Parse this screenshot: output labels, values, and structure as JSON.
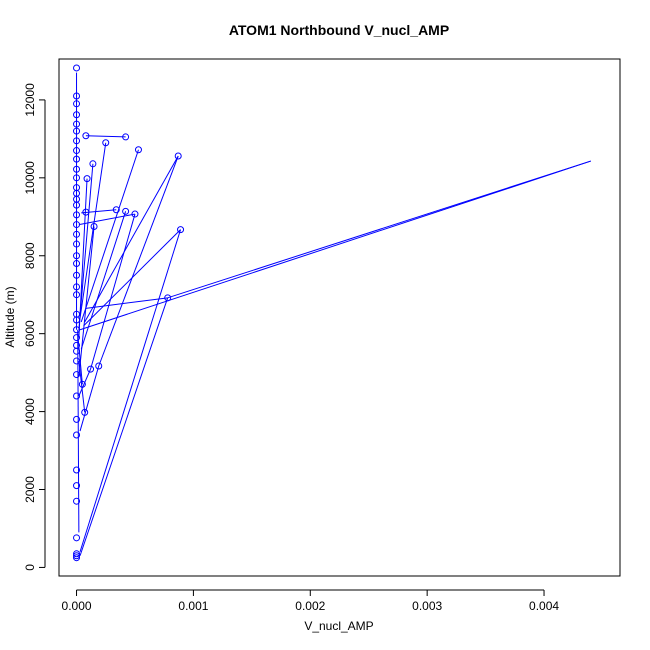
{
  "chart_data": {
    "type": "line",
    "title": "ATOM1 Northbound V_nucl_AMP",
    "xlabel": "V_nucl_AMP",
    "ylabel": "Altitude (m)",
    "xlim": [
      -0.00015,
      0.00465
    ],
    "ylim": [
      -220,
      13050
    ],
    "xticks": [
      0,
      0.001,
      0.002,
      0.003,
      0.004
    ],
    "xtick_labels": [
      "0.000",
      "0.001",
      "0.002",
      "0.003",
      "0.004"
    ],
    "yticks": [
      0,
      2000,
      4000,
      6000,
      8000,
      10000,
      12000
    ],
    "ytick_labels": [
      "0",
      "2000",
      "4000",
      "6000",
      "8000",
      "10000",
      "12000"
    ],
    "grid": false,
    "legend": "none",
    "series_color": "#0000ff",
    "series": [
      {
        "points": [
          [
            0.0,
            12820
          ],
          [
            0.0,
            12100
          ],
          [
            0.0,
            11900
          ],
          [
            0.0,
            11620
          ],
          [
            0.0,
            11380
          ],
          [
            0.0,
            11200
          ],
          [
            8e-05,
            11080
          ],
          [
            0.00042,
            11050
          ],
          [
            0.0,
            10950
          ],
          [
            0.00025,
            10900
          ],
          [
            0.0,
            10700
          ],
          [
            0.00053,
            10720
          ],
          [
            0.0,
            10480
          ],
          [
            0.00087,
            10560
          ],
          [
            0.00014,
            10360
          ],
          [
            0.0,
            10220
          ],
          [
            0.0,
            10000
          ],
          [
            9e-05,
            9980
          ],
          [
            0.0,
            9750
          ],
          [
            0.0,
            9600
          ],
          [
            0.0,
            9450
          ],
          [
            0.0,
            9300
          ],
          [
            0.00034,
            9180
          ],
          [
            8e-05,
            9120
          ],
          [
            0.0,
            9050
          ],
          [
            0.00042,
            9140
          ],
          [
            0.0005,
            9070
          ],
          [
            0.0,
            8800
          ],
          [
            0.00015,
            8750
          ],
          [
            0.00089,
            8670
          ],
          [
            0.0,
            8550
          ],
          [
            0.0,
            8300
          ],
          [
            0.0,
            8000
          ],
          [
            0.0,
            7800
          ],
          [
            0.0,
            7500
          ],
          [
            0.0,
            7200
          ],
          [
            0.0,
            7000
          ],
          [
            0.00078,
            6920
          ],
          [
            0.0,
            6500
          ],
          [
            0.0,
            6350
          ],
          [
            0.0,
            6100
          ],
          [
            0.0,
            5900
          ],
          [
            0.0,
            5700
          ],
          [
            0.0,
            5550
          ],
          [
            0.0,
            5300
          ],
          [
            0.00019,
            5170
          ],
          [
            0.00012,
            5090
          ],
          [
            0.0,
            4950
          ],
          [
            5e-05,
            4700
          ],
          [
            0.0,
            4400
          ],
          [
            7e-05,
            3980
          ],
          [
            0.0,
            3800
          ],
          [
            0.0,
            3400
          ],
          [
            0.0,
            2500
          ],
          [
            0.0,
            2100
          ],
          [
            0.0,
            1700
          ],
          [
            0.0,
            760
          ],
          [
            0.0,
            350
          ],
          [
            0.0,
            300
          ],
          [
            0.0,
            250
          ]
        ],
        "segments": [
          [
            [
              0.0,
              12700
            ],
            [
              0.0,
              6100
            ]
          ],
          [
            [
              8e-05,
              11080
            ],
            [
              0.00042,
              11050
            ]
          ],
          [
            [
              0.00025,
              10900
            ],
            [
              3e-05,
              6400
            ]
          ],
          [
            [
              0.00053,
              10720
            ],
            [
              4e-05,
              6300
            ]
          ],
          [
            [
              0.00087,
              10560
            ],
            [
              7e-05,
              6300
            ]
          ],
          [
            [
              0.00087,
              10560
            ],
            [
              0.00019,
              5170
            ]
          ],
          [
            [
              0.00014,
              10360
            ],
            [
              2e-05,
              6100
            ]
          ],
          [
            [
              0.0044,
              10430
            ],
            [
              3e-05,
              6100
            ]
          ],
          [
            [
              0.0044,
              10430
            ],
            [
              0.00078,
              6920
            ]
          ],
          [
            [
              0.00078,
              6920
            ],
            [
              8e-05,
              6650
            ]
          ],
          [
            [
              0.00089,
              8670
            ],
            [
              6e-05,
              6200
            ]
          ],
          [
            [
              0.00089,
              8670
            ],
            [
              3e-05,
              400
            ]
          ],
          [
            [
              0.00034,
              9180
            ],
            [
              4e-05,
              9100
            ]
          ],
          [
            [
              0.0005,
              9070
            ],
            [
              2e-05,
              8800
            ]
          ],
          [
            [
              0.00042,
              9140
            ],
            [
              4e-05,
              5600
            ]
          ],
          [
            [
              0.0005,
              9070
            ],
            [
              0.00012,
              5090
            ]
          ],
          [
            [
              9e-05,
              9980
            ],
            [
              2e-05,
              5900
            ]
          ],
          [
            [
              0.00015,
              8750
            ],
            [
              2e-05,
              4900
            ]
          ],
          [
            [
              0.00019,
              5170
            ],
            [
              3e-05,
              3500
            ]
          ],
          [
            [
              0.00012,
              5090
            ],
            [
              2e-05,
              4400
            ]
          ],
          [
            [
              7e-05,
              3980
            ],
            [
              2e-05,
              5300
            ]
          ],
          [
            [
              0.00078,
              6920
            ],
            [
              3e-05,
              300
            ]
          ],
          [
            [
              5e-05,
              4700
            ],
            [
              1e-05,
              6000
            ]
          ],
          [
            [
              1e-05,
              6100
            ],
            [
              2e-05,
              900
            ]
          ]
        ]
      }
    ]
  }
}
